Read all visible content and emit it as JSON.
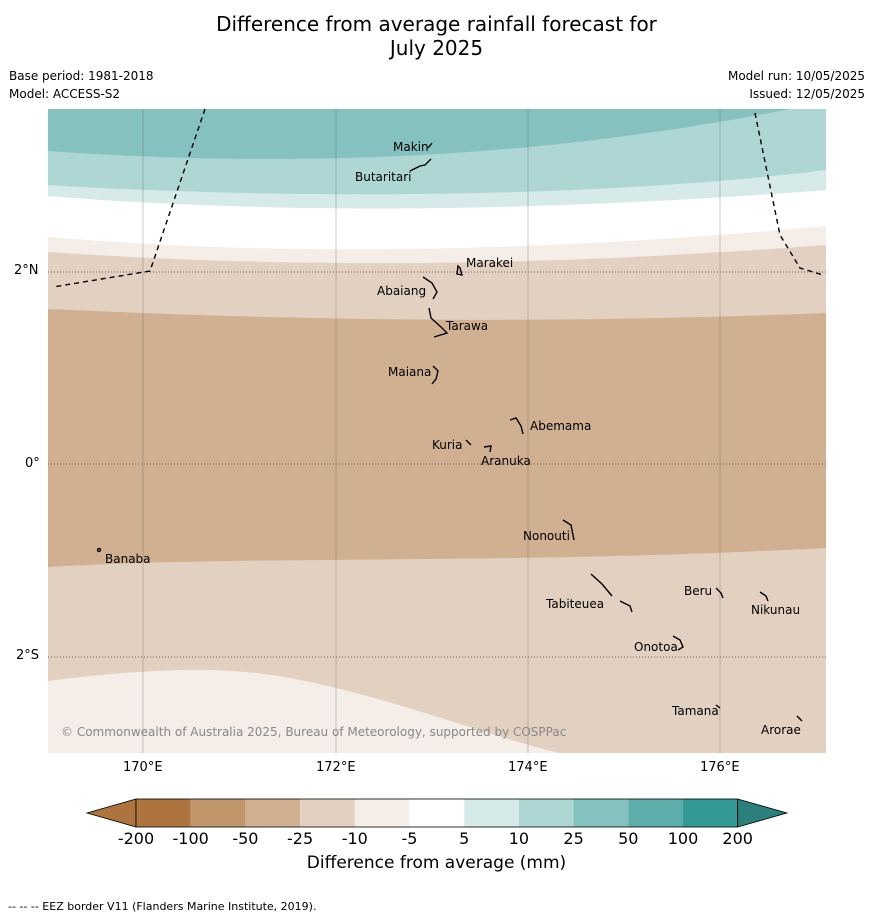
{
  "header": {
    "title_line1": "Difference from average rainfall forecast for",
    "title_line2": "July 2025",
    "base_period": "Base period: 1981-2018",
    "model": "Model: ACCESS-S2",
    "model_run": "Model run: 10/05/2025",
    "issued": "Issued: 12/05/2025"
  },
  "map": {
    "lat_labels": [
      "2°N",
      "0°",
      "2°S"
    ],
    "lon_labels": [
      "170°E",
      "172°E",
      "174°E",
      "176°E"
    ],
    "copyright": "© Commonwealth of Australia 2025, Bureau of Meteorology, supported by COSPPac",
    "islands": [
      "Makin",
      "Butaritari",
      "Marakei",
      "Abaiang",
      "Tarawa",
      "Maiana",
      "Abemama",
      "Kuria",
      "Aranuka",
      "Nonouti",
      "Banaba",
      "Beru",
      "Nikunau",
      "Tabiteuea",
      "Onotoa",
      "Tamana",
      "Arorae"
    ],
    "colors": {
      "dry_200": "#ad7440",
      "dry_100": "#c0966a",
      "dry_50": "#d1b092",
      "dry_25": "#e2d1c0",
      "dry_10": "#f4ede8",
      "neutral": "#ffffff",
      "wet_10": "#d6eae9",
      "wet_25": "#add6d4",
      "wet_50": "#84c1bf",
      "wet_100": "#5dadaa",
      "wet_200": "#349895"
    }
  },
  "colorbar": {
    "title": "Difference from average (mm)",
    "ticks": [
      "-200",
      "-100",
      "-50",
      "-25",
      "-10",
      "-5",
      "5",
      "10",
      "25",
      "50",
      "100",
      "200"
    ],
    "colors": [
      "#ad7440",
      "#c0966a",
      "#d1b092",
      "#e2d1c0",
      "#f4ede8",
      "#ffffff",
      "#d6eae9",
      "#add6d4",
      "#84c1bf",
      "#5dadaa",
      "#349895",
      "#2b7f7d"
    ]
  },
  "footer": {
    "eez_note": "--  --  -- EEZ border V11 (Flanders Marine Institute, 2019)."
  }
}
